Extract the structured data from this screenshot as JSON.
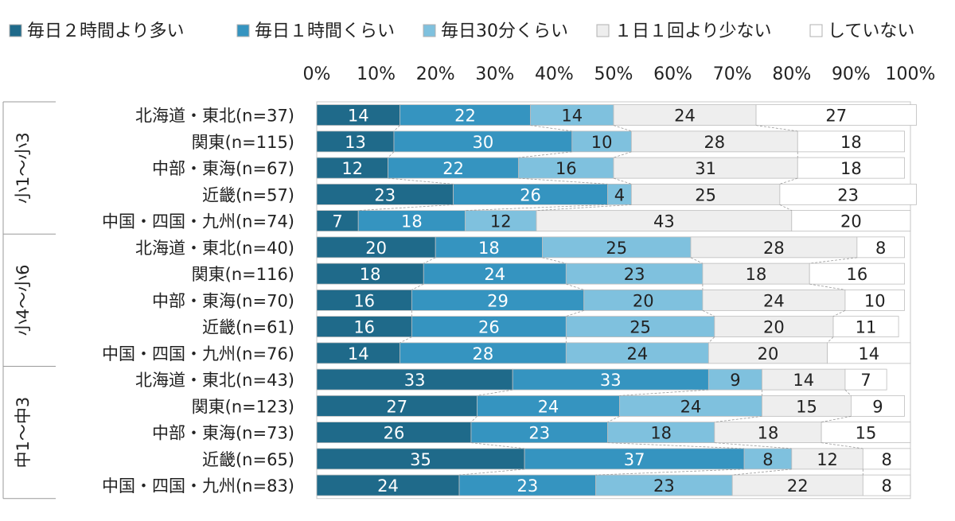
{
  "chart_data": {
    "type": "bar",
    "orientation": "horizontal",
    "stacked": true,
    "percent": true,
    "legend_position": "top",
    "x_ticks": [
      "0%",
      "10%",
      "20%",
      "30%",
      "40%",
      "50%",
      "60%",
      "70%",
      "80%",
      "90%",
      "100%"
    ],
    "xlim": [
      0,
      100
    ],
    "series": [
      {
        "name": "毎日２時間より多い",
        "color": "#1f6a8a",
        "text_color": "#ffffff"
      },
      {
        "name": "毎日１時間くらい",
        "color": "#3594c0",
        "text_color": "#ffffff"
      },
      {
        "name": "毎日30分くらい",
        "color": "#7fc1de",
        "text_color": "#222222"
      },
      {
        "name": "１日１回より少ない",
        "color": "#eeeeee",
        "text_color": "#222222"
      },
      {
        "name": "していない",
        "color": "#ffffff",
        "text_color": "#222222"
      }
    ],
    "groups": [
      {
        "label": "小1～小3",
        "rows": [
          {
            "label": "北海道・東北(n=37)",
            "values": [
              14,
              22,
              14,
              24,
              27
            ]
          },
          {
            "label": "関東(n=115)",
            "values": [
              13,
              30,
              10,
              28,
              18
            ]
          },
          {
            "label": "中部・東海(n=67)",
            "values": [
              12,
              22,
              16,
              31,
              18
            ]
          },
          {
            "label": "近畿(n=57)",
            "values": [
              23,
              26,
              4,
              25,
              23
            ]
          },
          {
            "label": "中国・四国・九州(n=74)",
            "values": [
              7,
              18,
              12,
              43,
              20
            ]
          }
        ]
      },
      {
        "label": "小4～小6",
        "rows": [
          {
            "label": "北海道・東北(n=40)",
            "values": [
              20,
              18,
              25,
              28,
              8
            ]
          },
          {
            "label": "関東(n=116)",
            "values": [
              18,
              24,
              23,
              18,
              16
            ]
          },
          {
            "label": "中部・東海(n=70)",
            "values": [
              16,
              29,
              20,
              24,
              10
            ]
          },
          {
            "label": "近畿(n=61)",
            "values": [
              16,
              26,
              25,
              20,
              11
            ]
          },
          {
            "label": "中国・四国・九州(n=76)",
            "values": [
              14,
              28,
              24,
              20,
              14
            ]
          }
        ]
      },
      {
        "label": "中1～中3",
        "rows": [
          {
            "label": "北海道・東北(n=43)",
            "values": [
              33,
              33,
              9,
              14,
              7
            ]
          },
          {
            "label": "関東(n=123)",
            "values": [
              27,
              24,
              24,
              15,
              9
            ]
          },
          {
            "label": "中部・東海(n=73)",
            "values": [
              26,
              23,
              18,
              18,
              15
            ]
          },
          {
            "label": "近畿(n=65)",
            "values": [
              35,
              37,
              8,
              12,
              8
            ]
          },
          {
            "label": "中国・四国・九州(n=83)",
            "values": [
              24,
              23,
              23,
              22,
              8
            ]
          }
        ]
      }
    ]
  }
}
